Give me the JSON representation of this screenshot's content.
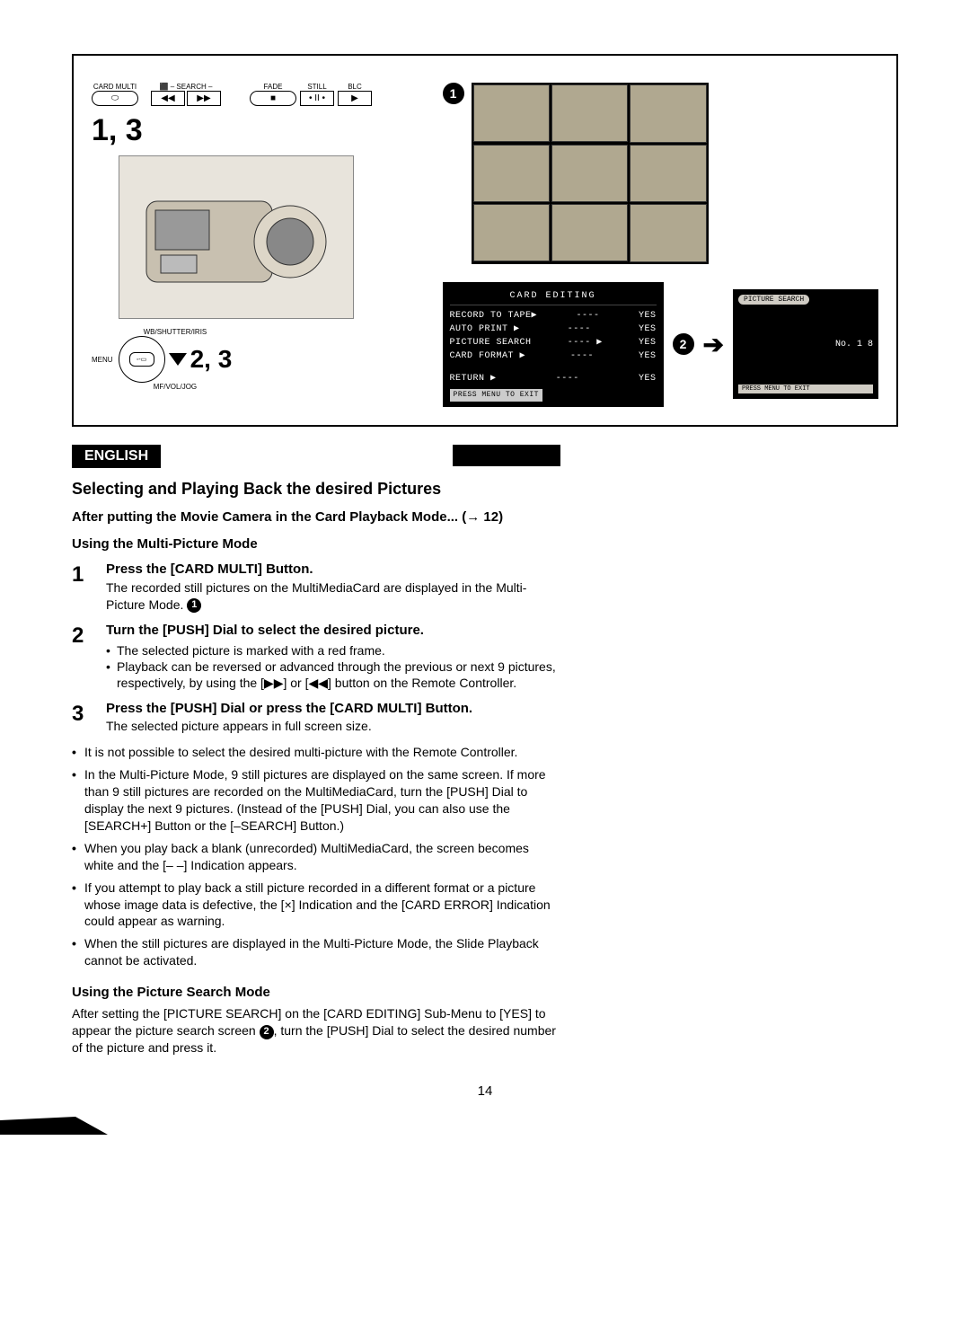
{
  "diagram": {
    "top_buttons": {
      "card_multi": "CARD MULTI",
      "search_label": "– SEARCH –",
      "search_group_icon": "⬛",
      "rew": "◀◀",
      "ff": "▶▶",
      "fade": "FADE",
      "fade_btn": "■",
      "still": "STILL",
      "still_btn": "• II •",
      "blc": "BLC",
      "blc_btn": "▶"
    },
    "step_label_1": "1, 3",
    "step_label_2": "2, 3",
    "menu_label": "MENU",
    "wb_label": "WB/SHUTTER/IRIS",
    "mf_label": "MF/VOL/JOG",
    "card_editing_menu": {
      "title": "CARD EDITING",
      "rows": [
        {
          "label": "RECORD TO TAPE▶",
          "dash": "----",
          "val": "YES"
        },
        {
          "label": "AUTO PRINT    ▶",
          "dash": "----",
          "val": "YES"
        },
        {
          "label": "PICTURE SEARCH",
          "dash": "---- ▶",
          "val": "YES"
        },
        {
          "label": "CARD FORMAT   ▶",
          "dash": "----",
          "val": "YES"
        }
      ],
      "return_row": {
        "label": "RETURN        ▶",
        "dash": "----",
        "val": "YES"
      },
      "press_menu": "PRESS MENU TO EXIT"
    },
    "picture_search": {
      "title": "PICTURE SEARCH",
      "number": "No. 1 8",
      "footer": "PRESS MENU TO EXIT"
    },
    "badge1": "1",
    "badge2": "2"
  },
  "lang_tag": "ENGLISH",
  "section_title": "Selecting and Playing Back the desired Pictures",
  "intro_bold": "After putting the Movie Camera in the Card Playback Mode... (→ 12)",
  "multi_mode_heading": "Using the Multi-Picture Mode",
  "steps": [
    {
      "num": "1",
      "head": "Press the [CARD MULTI] Button.",
      "text": "The recorded still pictures on the MultiMediaCard are displayed in the Multi-Picture Mode.",
      "badge_after": "1"
    },
    {
      "num": "2",
      "head": "Turn the [PUSH] Dial to select the desired picture.",
      "bullets": [
        "The selected picture is marked with a red frame.",
        "Playback can be reversed or advanced through the previous or next 9 pictures, respectively, by using the [▶▶] or [◀◀] button on the Remote Controller."
      ]
    },
    {
      "num": "3",
      "head": "Press the [PUSH] Dial or press the [CARD MULTI] Button.",
      "text": "The selected picture appears in full screen size."
    }
  ],
  "notes": [
    "It is not possible to select the desired multi-picture with the Remote Controller.",
    "In the Multi-Picture Mode, 9 still pictures are displayed on the same screen. If more than 9 still pictures are recorded on the MultiMediaCard, turn the [PUSH] Dial to display the next 9 pictures. (Instead of the [PUSH] Dial, you can also use the [SEARCH+] Button or the [–SEARCH] Button.)",
    "When you play back a blank (unrecorded) MultiMediaCard, the screen becomes white and the [– –] Indication appears.",
    "If you attempt to play back a still picture recorded in a different format or a picture whose image data is defective, the [×] Indication and the [CARD ERROR] Indication could appear as warning.",
    "When the still pictures are displayed in the Multi-Picture Mode, the Slide Playback cannot be activated."
  ],
  "search_heading": "Using the Picture Search Mode",
  "search_para_a": "After setting the [PICTURE SEARCH] on the [CARD EDITING] Sub-Menu to [YES] to appear the picture search screen ",
  "search_badge": "2",
  "search_para_b": ", turn the [PUSH] Dial to select the desired number of the picture and press it.",
  "page_number": "14"
}
